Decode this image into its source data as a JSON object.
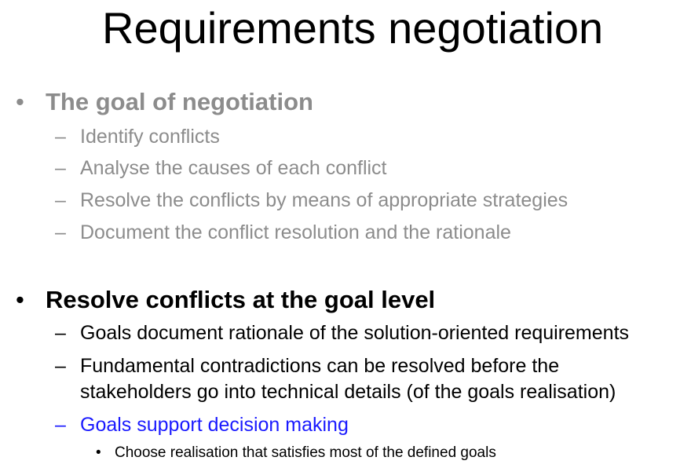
{
  "slide": {
    "title": "Requirements negotiation",
    "sections": [
      {
        "marker": "•",
        "heading": "The goal of negotiation",
        "items": [
          {
            "marker": "–",
            "text": "Identify conflicts"
          },
          {
            "marker": "–",
            "text": "Analyse the causes of each conflict"
          },
          {
            "marker": "–",
            "text": "Resolve the conflicts by means of appropriate strategies"
          },
          {
            "marker": "–",
            "text": "Document the conflict resolution and the rationale"
          }
        ]
      },
      {
        "marker": "•",
        "heading": "Resolve conflicts at the goal level",
        "items": [
          {
            "marker": "–",
            "text": "Goals document rationale of the solution-oriented requirements"
          },
          {
            "marker": "–",
            "text": "Fundamental contradictions can be resolved before the",
            "continuation": "stakeholders go into technical details (of the goals realisation)"
          },
          {
            "marker": "–",
            "text": "Goals support decision making",
            "subitems": [
              {
                "marker": "•",
                "text": "Choose realisation that satisfies most of the defined goals"
              }
            ]
          }
        ]
      }
    ]
  },
  "colors": {
    "muted_text": "#8c8c8c",
    "body_text": "#000000",
    "highlight_text": "#1a1aff"
  }
}
